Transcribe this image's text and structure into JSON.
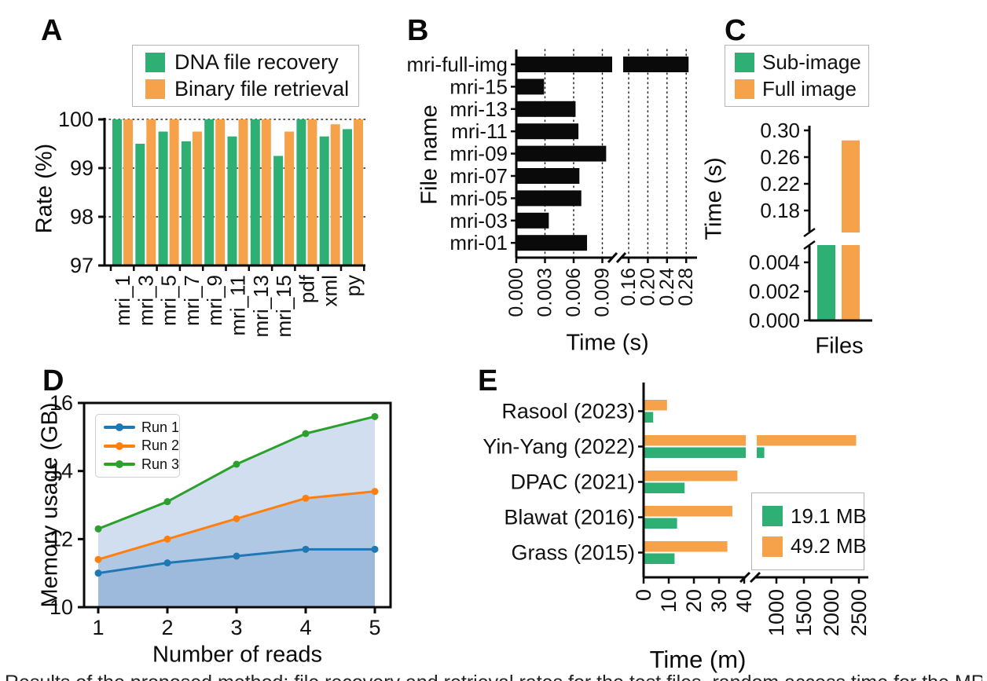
{
  "panels": {
    "a": "A",
    "b": "B",
    "c": "C",
    "d": "D",
    "e": "E"
  },
  "colors": {
    "green": "#2EB074",
    "orange": "#F5A24B",
    "bar_black": "#0A0A0A",
    "run1_blue": "#1F77B4",
    "run2_orange": "#FF7F0E",
    "run3_green": "#2CA02C",
    "area_fill": "rgba(120,160,210,0.35)",
    "text": "#111111"
  },
  "bottom_cutoff_text_illegible": "Results of the proposed method: file recovery and retrieval rates for the test files, random access time for the MRI files, the sub-image and full image retrieval time, memory usage for the number of reads and the total",
  "chart_data": [
    {
      "id": "A",
      "type": "bar",
      "ylabel": "Rate (%)",
      "categories": [
        "mri_1",
        "mri_3",
        "mri_5",
        "mri_7",
        "mri_9",
        "mri_11",
        "mri_13",
        "mri_15",
        "pdf",
        "xml",
        "py"
      ],
      "series": [
        {
          "name": "DNA file recovery",
          "color": "#2EB074",
          "values": [
            100,
            99.5,
            99.75,
            99.55,
            100,
            99.65,
            100,
            99.25,
            100,
            99.65,
            99.8
          ]
        },
        {
          "name": "Binary file retrieval",
          "color": "#F5A24B",
          "values": [
            100,
            100,
            100,
            99.75,
            100,
            100,
            100,
            99.75,
            100,
            99.9,
            100
          ]
        }
      ],
      "ylim": [
        97,
        100
      ],
      "ytick_labels": [
        "97",
        "98",
        "99",
        "100"
      ],
      "grid": "horizontal dotted at 98, 99, 100",
      "legend_position": "top"
    },
    {
      "id": "B",
      "type": "bar-horizontal",
      "xlabel": "Time (s)",
      "ylabel": "File name",
      "categories_top_to_bottom": [
        "mri-full-img",
        "mri-15",
        "mri-13",
        "mri-11",
        "mri-09",
        "mri-07",
        "mri-05",
        "mri-03",
        "mri-01"
      ],
      "values": [
        0.285,
        0.0029,
        0.0062,
        0.0065,
        0.0094,
        0.0066,
        0.0068,
        0.0034,
        0.0074
      ],
      "bar_color": "#0A0A0A",
      "axis_break": {
        "left_tick_labels": [
          "0.000",
          "0.003",
          "0.006",
          "0.009"
        ],
        "left_tick_values": [
          0,
          0.003,
          0.006,
          0.009
        ],
        "right_tick_labels": [
          "0.16",
          "0.20",
          "0.24",
          "0.28"
        ],
        "right_tick_values": [
          0.16,
          0.2,
          0.24,
          0.28
        ]
      },
      "grid": "vertical dotted at every tick"
    },
    {
      "id": "C",
      "type": "bar",
      "xlabel": "Files",
      "ylabel": "Time (s)",
      "series": [
        {
          "name": "Sub-image",
          "color": "#2EB074",
          "value": 0.0055
        },
        {
          "name": "Full image",
          "color": "#F5A24B",
          "value": 0.285
        }
      ],
      "axis_break": {
        "bottom_tick_labels": [
          "0.000",
          "0.002",
          "0.004"
        ],
        "bottom_tick_values": [
          0,
          0.002,
          0.004
        ],
        "top_tick_labels": [
          "0.18",
          "0.22",
          "0.26",
          "0.30"
        ],
        "top_tick_values": [
          0.18,
          0.22,
          0.26,
          0.3
        ]
      },
      "legend_position": "top"
    },
    {
      "id": "D",
      "type": "line",
      "xlabel": "Number of reads",
      "ylabel": "Memory usage (GB)",
      "x": [
        1,
        2,
        3,
        4,
        5
      ],
      "series": [
        {
          "name": "Run 1",
          "color": "#1F77B4",
          "values": [
            11.0,
            11.3,
            11.5,
            11.7,
            11.7
          ]
        },
        {
          "name": "Run 2",
          "color": "#FF7F0E",
          "values": [
            11.4,
            12.0,
            12.6,
            13.2,
            13.4
          ]
        },
        {
          "name": "Run 3",
          "color": "#2CA02C",
          "values": [
            12.3,
            13.1,
            14.2,
            15.1,
            15.6
          ]
        }
      ],
      "ylim": [
        10,
        16
      ],
      "ytick_labels": [
        "10",
        "12",
        "14",
        "16"
      ],
      "ytick_values": [
        10,
        12,
        14,
        16
      ],
      "xtick_labels": [
        "1",
        "2",
        "3",
        "4",
        "5"
      ],
      "area_fill": "stacked translucent blue under each line",
      "legend_position": "upper left"
    },
    {
      "id": "E",
      "type": "bar-horizontal-grouped",
      "xlabel": "Time (m)",
      "categories_top_to_bottom": [
        "Rasool (2023)",
        "Yin-Yang (2022)",
        "DPAC (2021)",
        "Blawat (2016)",
        "Grass (2015)"
      ],
      "series": [
        {
          "name": "19.1 MB",
          "color": "#2EB074",
          "values": [
            3.5,
            780,
            16,
            13,
            12
          ]
        },
        {
          "name": "49.2 MB",
          "color": "#F5A24B",
          "values": [
            9,
            2450,
            37,
            35,
            33
          ]
        }
      ],
      "axis_break": {
        "left_tick_labels": [
          "0",
          "10",
          "20",
          "30",
          "40"
        ],
        "left_tick_values": [
          0,
          10,
          20,
          30,
          40
        ],
        "right_tick_labels": [
          "1000",
          "1500",
          "2000",
          "2500"
        ],
        "right_tick_values": [
          1000,
          1500,
          2000,
          2500
        ]
      }
    }
  ]
}
